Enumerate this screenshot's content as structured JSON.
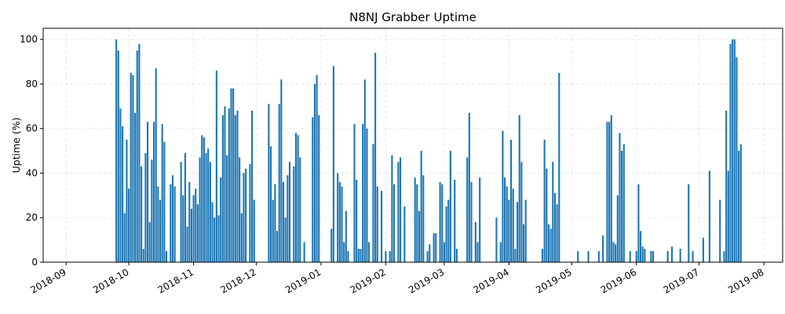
{
  "chart_data": {
    "type": "bar",
    "title": "N8NJ Grabber Uptime",
    "xlabel": "",
    "ylabel": "Uptime (%)",
    "ylim": [
      0,
      105
    ],
    "xlim": [
      "2018-08-21",
      "2019-08-10"
    ],
    "yticks": [
      0,
      20,
      40,
      60,
      80,
      100
    ],
    "xticks": [
      "2018-09-01",
      "2018-10-01",
      "2018-11-01",
      "2018-12-01",
      "2019-01-01",
      "2019-02-01",
      "2019-03-01",
      "2019-04-01",
      "2019-05-01",
      "2019-06-01",
      "2019-07-01",
      "2019-08-01"
    ],
    "xtick_labels": [
      "2018-09",
      "2018-10",
      "2018-11",
      "2018-12",
      "2019-01",
      "2019-02",
      "2019-03",
      "2019-04",
      "2019-05",
      "2019-06",
      "2019-07",
      "2019-08"
    ],
    "grid": true,
    "bar_color": "#1f77b4",
    "series": [
      {
        "values": [
          [
            "2018-09-25",
            100
          ],
          [
            "2018-09-26",
            95
          ],
          [
            "2018-09-27",
            69
          ],
          [
            "2018-09-28",
            61
          ],
          [
            "2018-09-29",
            22
          ],
          [
            "2018-09-30",
            55
          ],
          [
            "2018-10-01",
            33
          ],
          [
            "2018-10-02",
            85
          ],
          [
            "2018-10-03",
            84
          ],
          [
            "2018-10-04",
            67
          ],
          [
            "2018-10-05",
            95
          ],
          [
            "2018-10-06",
            98
          ],
          [
            "2018-10-07",
            43
          ],
          [
            "2018-10-08",
            6
          ],
          [
            "2018-10-09",
            49
          ],
          [
            "2018-10-10",
            63
          ],
          [
            "2018-10-11",
            18
          ],
          [
            "2018-10-12",
            46
          ],
          [
            "2018-10-13",
            63
          ],
          [
            "2018-10-14",
            87
          ],
          [
            "2018-10-15",
            34
          ],
          [
            "2018-10-16",
            28
          ],
          [
            "2018-10-17",
            62
          ],
          [
            "2018-10-18",
            54
          ],
          [
            "2018-10-19",
            5
          ],
          [
            "2018-10-21",
            35
          ],
          [
            "2018-10-22",
            39
          ],
          [
            "2018-10-23",
            34
          ],
          [
            "2018-10-26",
            45
          ],
          [
            "2018-10-27",
            30
          ],
          [
            "2018-10-28",
            49
          ],
          [
            "2018-10-29",
            16
          ],
          [
            "2018-10-30",
            36
          ],
          [
            "2018-10-31",
            24
          ],
          [
            "2018-11-01",
            30
          ],
          [
            "2018-11-02",
            33
          ],
          [
            "2018-11-03",
            26
          ],
          [
            "2018-11-04",
            47
          ],
          [
            "2018-11-05",
            57
          ],
          [
            "2018-11-06",
            56
          ],
          [
            "2018-11-07",
            49
          ],
          [
            "2018-11-08",
            51
          ],
          [
            "2018-11-09",
            45
          ],
          [
            "2018-11-10",
            27
          ],
          [
            "2018-11-11",
            20
          ],
          [
            "2018-11-12",
            86
          ],
          [
            "2018-11-13",
            21
          ],
          [
            "2018-11-14",
            38
          ],
          [
            "2018-11-15",
            66
          ],
          [
            "2018-11-16",
            70
          ],
          [
            "2018-11-17",
            48
          ],
          [
            "2018-11-18",
            69
          ],
          [
            "2018-11-19",
            78
          ],
          [
            "2018-11-20",
            78
          ],
          [
            "2018-11-21",
            66
          ],
          [
            "2018-11-22",
            68
          ],
          [
            "2018-11-23",
            47
          ],
          [
            "2018-11-24",
            22
          ],
          [
            "2018-11-25",
            40
          ],
          [
            "2018-11-26",
            42
          ],
          [
            "2018-11-28",
            44
          ],
          [
            "2018-11-29",
            68
          ],
          [
            "2018-11-30",
            28
          ],
          [
            "2018-12-07",
            71
          ],
          [
            "2018-12-08",
            52
          ],
          [
            "2018-12-09",
            28
          ],
          [
            "2018-12-10",
            35
          ],
          [
            "2018-12-11",
            14
          ],
          [
            "2018-12-12",
            71
          ],
          [
            "2018-12-13",
            82
          ],
          [
            "2018-12-14",
            36
          ],
          [
            "2018-12-15",
            20
          ],
          [
            "2018-12-16",
            39
          ],
          [
            "2018-12-17",
            45
          ],
          [
            "2018-12-19",
            43
          ],
          [
            "2018-12-20",
            58
          ],
          [
            "2018-12-21",
            57
          ],
          [
            "2018-12-22",
            47
          ],
          [
            "2018-12-24",
            9
          ],
          [
            "2018-12-28",
            65
          ],
          [
            "2018-12-29",
            80
          ],
          [
            "2018-12-30",
            84
          ],
          [
            "2018-12-31",
            66
          ],
          [
            "2019-01-06",
            15
          ],
          [
            "2019-01-07",
            88
          ],
          [
            "2019-01-09",
            40
          ],
          [
            "2019-01-10",
            36
          ],
          [
            "2019-01-11",
            34
          ],
          [
            "2019-01-12",
            9
          ],
          [
            "2019-01-13",
            23
          ],
          [
            "2019-01-14",
            5
          ],
          [
            "2019-01-17",
            62
          ],
          [
            "2019-01-18",
            37
          ],
          [
            "2019-01-19",
            6
          ],
          [
            "2019-01-20",
            6
          ],
          [
            "2019-01-21",
            62
          ],
          [
            "2019-01-22",
            82
          ],
          [
            "2019-01-23",
            60
          ],
          [
            "2019-01-24",
            9
          ],
          [
            "2019-01-26",
            53
          ],
          [
            "2019-01-27",
            94
          ],
          [
            "2019-01-28",
            34
          ],
          [
            "2019-01-30",
            32
          ],
          [
            "2019-02-01",
            5
          ],
          [
            "2019-02-03",
            5
          ],
          [
            "2019-02-04",
            48
          ],
          [
            "2019-02-05",
            35
          ],
          [
            "2019-02-07",
            45
          ],
          [
            "2019-02-08",
            47
          ],
          [
            "2019-02-10",
            25
          ],
          [
            "2019-02-15",
            38
          ],
          [
            "2019-02-16",
            35
          ],
          [
            "2019-02-17",
            23
          ],
          [
            "2019-02-18",
            50
          ],
          [
            "2019-02-19",
            39
          ],
          [
            "2019-02-21",
            5
          ],
          [
            "2019-02-22",
            8
          ],
          [
            "2019-02-24",
            13
          ],
          [
            "2019-02-25",
            13
          ],
          [
            "2019-02-27",
            36
          ],
          [
            "2019-02-28",
            35
          ],
          [
            "2019-03-01",
            9
          ],
          [
            "2019-03-02",
            25
          ],
          [
            "2019-03-03",
            28
          ],
          [
            "2019-03-04",
            50
          ],
          [
            "2019-03-06",
            37
          ],
          [
            "2019-03-07",
            6
          ],
          [
            "2019-03-12",
            47
          ],
          [
            "2019-03-13",
            67
          ],
          [
            "2019-03-14",
            36
          ],
          [
            "2019-03-16",
            18
          ],
          [
            "2019-03-17",
            9
          ],
          [
            "2019-03-18",
            38
          ],
          [
            "2019-03-26",
            20
          ],
          [
            "2019-03-28",
            9
          ],
          [
            "2019-03-29",
            59
          ],
          [
            "2019-03-30",
            38
          ],
          [
            "2019-03-31",
            34
          ],
          [
            "2019-04-01",
            28
          ],
          [
            "2019-04-02",
            55
          ],
          [
            "2019-04-03",
            33
          ],
          [
            "2019-04-04",
            6
          ],
          [
            "2019-04-05",
            27
          ],
          [
            "2019-04-06",
            66
          ],
          [
            "2019-04-07",
            45
          ],
          [
            "2019-04-08",
            17
          ],
          [
            "2019-04-09",
            28
          ],
          [
            "2019-04-17",
            6
          ],
          [
            "2019-04-18",
            55
          ],
          [
            "2019-04-19",
            42
          ],
          [
            "2019-04-20",
            17
          ],
          [
            "2019-04-21",
            15
          ],
          [
            "2019-04-22",
            45
          ],
          [
            "2019-04-23",
            31
          ],
          [
            "2019-04-24",
            26
          ],
          [
            "2019-04-25",
            85
          ],
          [
            "2019-05-04",
            5
          ],
          [
            "2019-05-09",
            5
          ],
          [
            "2019-05-14",
            5
          ],
          [
            "2019-05-16",
            12
          ],
          [
            "2019-05-18",
            63
          ],
          [
            "2019-05-19",
            63
          ],
          [
            "2019-05-20",
            66
          ],
          [
            "2019-05-21",
            9
          ],
          [
            "2019-05-22",
            8
          ],
          [
            "2019-05-23",
            30
          ],
          [
            "2019-05-24",
            58
          ],
          [
            "2019-05-25",
            50
          ],
          [
            "2019-05-26",
            53
          ],
          [
            "2019-05-29",
            5
          ],
          [
            "2019-06-01",
            5
          ],
          [
            "2019-06-02",
            35
          ],
          [
            "2019-06-03",
            14
          ],
          [
            "2019-06-04",
            7
          ],
          [
            "2019-06-05",
            6
          ],
          [
            "2019-06-08",
            5
          ],
          [
            "2019-06-09",
            5
          ],
          [
            "2019-06-16",
            5
          ],
          [
            "2019-06-18",
            7
          ],
          [
            "2019-06-22",
            6
          ],
          [
            "2019-06-26",
            35
          ],
          [
            "2019-06-28",
            5
          ],
          [
            "2019-07-03",
            11
          ],
          [
            "2019-07-06",
            41
          ],
          [
            "2019-07-11",
            28
          ],
          [
            "2019-07-13",
            5
          ],
          [
            "2019-07-14",
            68
          ],
          [
            "2019-07-15",
            41
          ],
          [
            "2019-07-16",
            98
          ],
          [
            "2019-07-17",
            100
          ],
          [
            "2019-07-18",
            100
          ],
          [
            "2019-07-19",
            92
          ],
          [
            "2019-07-20",
            50
          ],
          [
            "2019-07-21",
            53
          ]
        ]
      }
    ]
  }
}
